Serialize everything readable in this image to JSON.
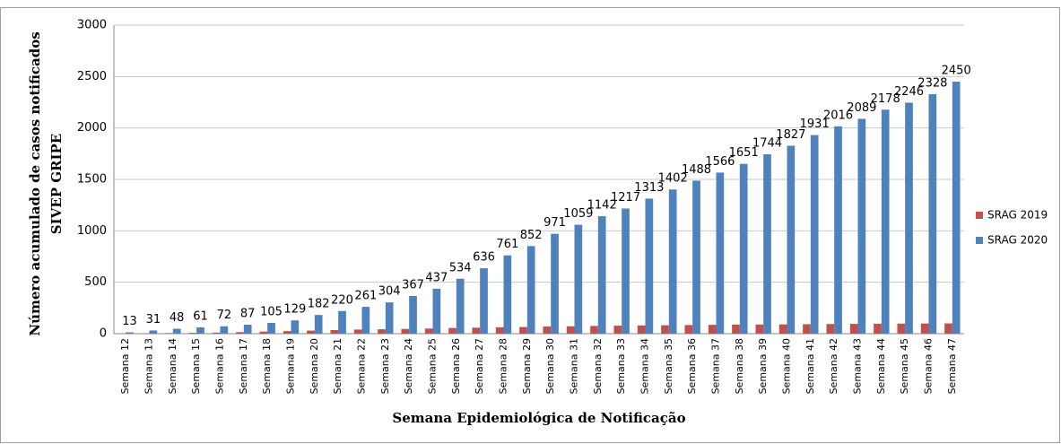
{
  "chart_data": {
    "type": "bar",
    "xlabel": "Semana Epidemiológica de Notificação",
    "ylabel": [
      "Número acumulado de casos notificados",
      "SIVEP GRIPE"
    ],
    "categories": [
      "Semana 12",
      "Semana 13",
      "Semana 14",
      "Semana 15",
      "Semana 16",
      "Semana 17",
      "Semana 18",
      "Semana 19",
      "Semana 20",
      "Semana 21",
      "Semana 22",
      "Semana 23",
      "Semana 24",
      "Semana 25",
      "Semana 26",
      "Semana 27",
      "Semana 28",
      "Semana 29",
      "Semana 30",
      "Semana 31",
      "Semana 32",
      "Semana 33",
      "Semana 34",
      "Semana 35",
      "Semana 36",
      "Semana 37",
      "Semana 38",
      "Semana 39",
      "Semana 40",
      "Semana 41",
      "Semana 42",
      "Semana 43",
      "Semana 44",
      "Semana 45",
      "Semana 46",
      "Semana 47"
    ],
    "series": [
      {
        "name": "SRAG 2019",
        "color": "#c0504d",
        "values": [
          2,
          4,
          6,
          8,
          10,
          15,
          20,
          25,
          30,
          35,
          40,
          43,
          46,
          50,
          55,
          58,
          62,
          65,
          70,
          72,
          75,
          78,
          80,
          82,
          84,
          86,
          88,
          89,
          90,
          92,
          94,
          95,
          97,
          98,
          99,
          100
        ]
      },
      {
        "name": "SRAG 2020",
        "color": "#4f81bd",
        "show_labels": true,
        "values": [
          13,
          31,
          48,
          61,
          72,
          87,
          105,
          129,
          182,
          220,
          261,
          304,
          367,
          437,
          534,
          636,
          761,
          852,
          971,
          1059,
          1142,
          1217,
          1313,
          1402,
          1488,
          1566,
          1651,
          1744,
          1827,
          1931,
          2016,
          2089,
          2178,
          2246,
          2328,
          2450
        ]
      }
    ],
    "ylim": [
      0,
      3000
    ],
    "yticks": [
      0,
      500,
      1000,
      1500,
      2000,
      2500,
      3000
    ],
    "grid": true,
    "legend": "right"
  }
}
